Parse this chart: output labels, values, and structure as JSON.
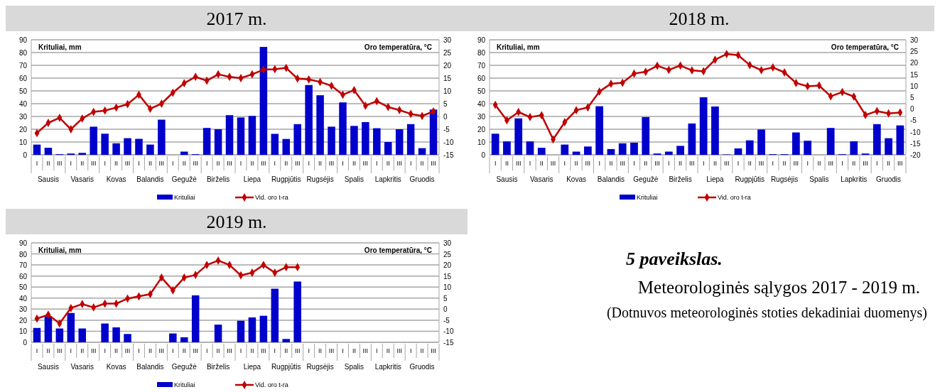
{
  "chart_data": [
    {
      "type": "bar",
      "title": "2017 m.",
      "ylabel": "Krituliai, mm",
      "y2label": "Oro temperatūra, °C",
      "categories": [
        "I",
        "II",
        "III",
        "I",
        "II",
        "III",
        "I",
        "II",
        "III",
        "I",
        "II",
        "III",
        "I",
        "II",
        "III",
        "I",
        "II",
        "III",
        "I",
        "II",
        "III",
        "I",
        "II",
        "III",
        "I",
        "II",
        "III",
        "I",
        "II",
        "III",
        "I",
        "II",
        "III",
        "I",
        "II",
        "III"
      ],
      "annotations": [
        "Sausis",
        "Vasaris",
        "Kovas",
        "Balandis",
        "Gegužė",
        "Birželis",
        "Liepa",
        "Rugpjūtis",
        "Rugsėjis",
        "Spalis",
        "Lapkritis",
        "Gruodis"
      ],
      "series": [
        {
          "name": "Krituliai",
          "type": "bar",
          "color": "#0000cc",
          "values": [
            8,
            5.5,
            0.5,
            1,
            1.5,
            22,
            16.5,
            9,
            13,
            12.5,
            8,
            27.5,
            0,
            2.5,
            0.5,
            21,
            20,
            31,
            29.2,
            30.4,
            84.4,
            16.4,
            12.4,
            24,
            54.6,
            46.6,
            22,
            41,
            22.6,
            25.6,
            20.8,
            10,
            20,
            24,
            5.2,
            35.4
          ]
        },
        {
          "name": "Vid. oro t-ra",
          "type": "line",
          "axis": "y2",
          "color": "#c00000",
          "values": [
            -6.5,
            -2.5,
            -0.5,
            -5,
            -0.8,
            1.8,
            2.3,
            3.5,
            4.8,
            8.5,
            3,
            5,
            9.3,
            13,
            15.5,
            14,
            16.5,
            15.5,
            15,
            16.5,
            18.3,
            18.5,
            19,
            14.8,
            14.5,
            13.5,
            12,
            8.5,
            10.3,
            4.2,
            6,
            3.7,
            2.5,
            1,
            0.2,
            2
          ]
        }
      ],
      "ylim": [
        0,
        90
      ],
      "yticks": [
        0,
        10,
        20,
        30,
        40,
        50,
        60,
        70,
        80,
        90
      ],
      "y2lim": [
        -15,
        30
      ],
      "y2ticks": [
        -15,
        -10,
        -5,
        0,
        5,
        10,
        15,
        20,
        25,
        30
      ],
      "grid": "y",
      "legend": "bottom",
      "marker": "diamond"
    },
    {
      "type": "bar",
      "title": "2018 m.",
      "ylabel": "Krituliai, mm",
      "y2label": "Oro temperatūra, °C",
      "categories": [
        "I",
        "II",
        "III",
        "I",
        "II",
        "III",
        "I",
        "II",
        "III",
        "I",
        "II",
        "III",
        "I",
        "II",
        "III",
        "I",
        "II",
        "III",
        "I",
        "II",
        "III",
        "I",
        "II",
        "III",
        "I",
        "II",
        "III",
        "I",
        "II",
        "III",
        "I",
        "II",
        "III",
        "I",
        "II",
        "III"
      ],
      "annotations": [
        "Sausis",
        "Vasaris",
        "Kovas",
        "Balandis",
        "Gegužė",
        "Birželis",
        "Liepa",
        "Rugpjūtis",
        "Rugsėjis",
        "Spalis",
        "Lapkritis",
        "Gruodis"
      ],
      "series": [
        {
          "name": "Krituliai",
          "type": "bar",
          "color": "#0000cc",
          "values": [
            16.5,
            10.5,
            28.5,
            10.5,
            5.5,
            0,
            8,
            2.5,
            6.5,
            38,
            4.5,
            9,
            9.5,
            29.5,
            1,
            2.5,
            7,
            24.5,
            45,
            37.8,
            0.3,
            5,
            11.3,
            19.8,
            0.5,
            0.5,
            17.5,
            11,
            0,
            21,
            0.5,
            10.6,
            1,
            24,
            13,
            23
          ]
        },
        {
          "name": "Vid. oro t-ra",
          "type": "line",
          "axis": "y2",
          "color": "#c00000",
          "values": [
            1.7,
            -5,
            -1.4,
            -3.6,
            -2.8,
            -13.3,
            -5.8,
            -0.6,
            0.6,
            7.5,
            10.9,
            11.3,
            15.3,
            16.1,
            18.7,
            16.9,
            18.8,
            16.7,
            16.3,
            21.3,
            23.8,
            23.3,
            19,
            16.8,
            18,
            15.8,
            11.2,
            9.8,
            10.1,
            5.4,
            7.3,
            5.3,
            -2.7,
            -1,
            -2,
            -1.6
          ]
        }
      ],
      "ylim": [
        0,
        90
      ],
      "yticks": [
        0,
        10,
        20,
        30,
        40,
        50,
        60,
        70,
        80,
        90
      ],
      "y2lim": [
        -20,
        30
      ],
      "y2ticks": [
        -20,
        -15,
        -10,
        -5,
        0,
        5,
        10,
        15,
        20,
        25,
        30
      ],
      "grid": "y",
      "legend": "bottom",
      "marker": "diamond"
    },
    {
      "type": "bar",
      "title": "2019 m.",
      "ylabel": "Krituliai, mm",
      "y2label": "Oro temperatūra, °C",
      "categories": [
        "I",
        "II",
        "III",
        "I",
        "II",
        "III",
        "I",
        "II",
        "III",
        "I",
        "II",
        "III",
        "I",
        "II",
        "III",
        "I",
        "II",
        "III",
        "I",
        "II",
        "III",
        "I",
        "II",
        "III",
        "I",
        "II",
        "III",
        "I",
        "II",
        "III",
        "I",
        "II",
        "III",
        "I",
        "II",
        "III"
      ],
      "annotations": [
        "Sausis",
        "Vasaris",
        "Kovas",
        "Balandis",
        "Gegužė",
        "Birželis",
        "Liepa",
        "Rugpjūtis",
        "Rugsėjis",
        "Spalis",
        "Lapkritis",
        "Gruodis"
      ],
      "series": [
        {
          "name": "Krituliai",
          "type": "bar",
          "color": "#0000cc",
          "values": [
            13,
            23.5,
            12.5,
            26.5,
            12.5,
            0,
            17,
            13.5,
            7.5,
            0,
            0,
            0,
            8,
            4.5,
            42.5,
            0,
            16,
            0,
            19.5,
            22.5,
            24,
            48.5,
            3,
            55,
            null,
            null,
            null,
            null,
            null,
            null,
            null,
            null,
            null,
            null,
            null,
            null
          ]
        },
        {
          "name": "Vid. oro t-ra",
          "type": "line",
          "axis": "y2",
          "color": "#c00000",
          "values": [
            -4.3,
            -2.5,
            -6.5,
            0.5,
            2.3,
            0.8,
            2.5,
            2.5,
            4.8,
            5.8,
            6.8,
            14.3,
            8.5,
            14.3,
            15.5,
            20,
            22,
            20,
            15.3,
            16.5,
            20,
            16.5,
            19,
            19,
            null,
            null,
            null,
            null,
            null,
            null,
            null,
            null,
            null,
            null,
            null,
            null
          ]
        }
      ],
      "ylim": [
        0,
        90
      ],
      "yticks": [
        0,
        10,
        20,
        30,
        40,
        50,
        60,
        70,
        80,
        90
      ],
      "y2lim": [
        -15,
        30
      ],
      "y2ticks": [
        -15,
        -10,
        -5,
        0,
        5,
        10,
        15,
        20,
        25,
        30
      ],
      "grid": "y",
      "legend": "bottom",
      "marker": "diamond"
    },
    {
      "type": "other",
      "title": "5 paveikslas.",
      "subtitle": "Meteorologinės sąlygos 2017 - 2019 m.",
      "annotations": [
        "(Dotnuvos meteorologinės stoties dekadiniai duomenys)"
      ]
    }
  ]
}
